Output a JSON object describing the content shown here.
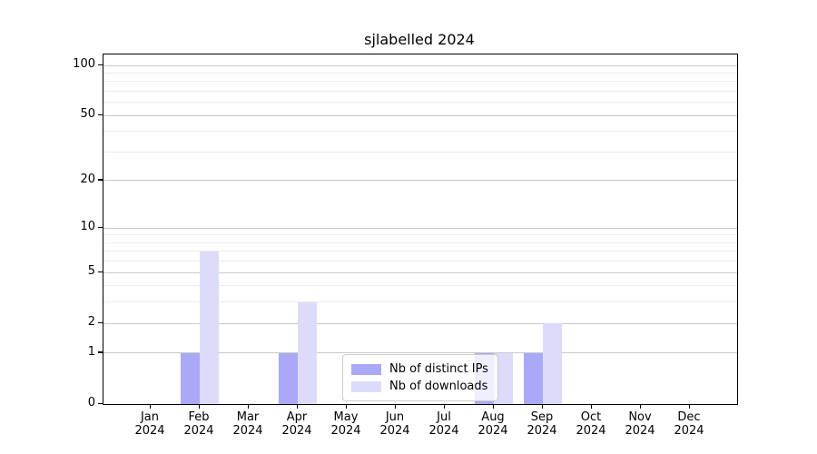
{
  "title": "sjlabelled 2024",
  "chart_data": {
    "type": "bar",
    "title": "sjlabelled 2024",
    "categories": [
      "Jan",
      "Feb",
      "Mar",
      "Apr",
      "May",
      "Jun",
      "Jul",
      "Aug",
      "Sep",
      "Oct",
      "Nov",
      "Dec"
    ],
    "year": "2024",
    "series": [
      {
        "name": "Nb of distinct IPs",
        "color": "#a9a9f8",
        "values": [
          0,
          1,
          0,
          1,
          0,
          0,
          0,
          1,
          1,
          0,
          0,
          0
        ]
      },
      {
        "name": "Nb of downloads",
        "color": "#dcdcfa",
        "values": [
          0,
          7,
          0,
          3,
          0,
          0,
          0,
          1,
          2,
          0,
          0,
          0
        ]
      }
    ],
    "y_axis": {
      "scale": "log1p",
      "tick_values": [
        0,
        1,
        2,
        5,
        10,
        20,
        50,
        100
      ],
      "tick_labels": [
        "0",
        "1",
        "2",
        "5",
        "10",
        "20",
        "50",
        "100"
      ],
      "major_gridlines": [
        1,
        2,
        5,
        10,
        20,
        50,
        100
      ],
      "minor_gridlines": [
        3,
        4,
        6,
        7,
        8,
        9,
        30,
        40,
        60,
        70,
        80,
        90
      ],
      "ylim": [
        0,
        115
      ]
    },
    "xlabel": "",
    "ylabel": "",
    "grid": true,
    "legend": {
      "position": "lower-center-inside",
      "entries": [
        "Nb of distinct IPs",
        "Nb of downloads"
      ]
    }
  },
  "colors": {
    "bar_distinct_ips": "#a9a9f8",
    "bar_downloads": "#dcdcfa",
    "major_grid": "#c9c9c9",
    "minor_grid": "#ececec",
    "axis": "#000000",
    "background": "#ffffff"
  }
}
